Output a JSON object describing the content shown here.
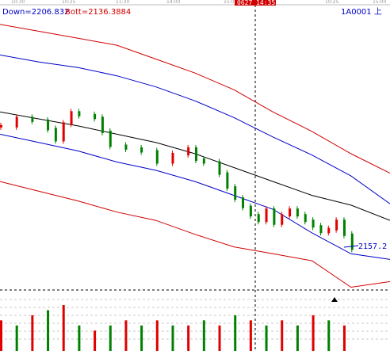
{
  "header": {
    "down_label": "Down=2206.832",
    "bott_label": "Bott=2136.3884",
    "symbol": "1A0001 上",
    "cursor_time": "0627 14:35"
  },
  "time_axis": {
    "top_ticks": [
      "10:30",
      "10:25",
      "11:30",
      "14:00",
      "15:00",
      "10:25",
      "15:00"
    ]
  },
  "price_label": "2157.2",
  "colors": {
    "up": "#e00000",
    "down": "#008000",
    "outer_band": "#d00000",
    "inner_band": "#0000c8",
    "mid_line": "#000000",
    "crosshair": "#000000",
    "cursor_box": "#d00000"
  },
  "chart_data": {
    "type": "line",
    "title": "",
    "xlabel": "",
    "ylabel": "",
    "ylim": [
      2126,
      2330
    ],
    "x": [
      0,
      10,
      20,
      30,
      40,
      50,
      60,
      70,
      80,
      90,
      100
    ],
    "series": [
      {
        "name": "",
        "role": "outer_upper",
        "values": [
          2325,
          2320,
          2315,
          2310,
          2300,
          2290,
          2278,
          2262,
          2248,
          2232,
          2218
        ]
      },
      {
        "name": "",
        "role": "inner_upper",
        "values": [
          2303,
          2298,
          2294,
          2288,
          2280,
          2270,
          2258,
          2244,
          2231,
          2216,
          2196
        ]
      },
      {
        "name": "",
        "role": "middle",
        "values": [
          2262,
          2257,
          2252,
          2246,
          2240,
          2232,
          2222,
          2212,
          2202,
          2195,
          2184
        ]
      },
      {
        "name": "",
        "role": "inner_lower",
        "values": [
          2246,
          2240,
          2234,
          2226,
          2220,
          2212,
          2202,
          2192,
          2175,
          2160,
          2156
        ]
      },
      {
        "name": "",
        "role": "outer_lower",
        "values": [
          2212,
          2205,
          2198,
          2190,
          2184,
          2174,
          2165,
          2160,
          2155,
          2136,
          2140
        ]
      }
    ],
    "price_path": {
      "x": [
        0,
        4,
        8,
        12,
        14,
        16,
        18,
        20,
        24,
        26,
        28,
        32,
        36,
        40,
        44,
        48,
        50,
        52,
        56,
        58,
        60,
        62,
        64,
        66,
        68,
        70,
        72,
        74,
        76,
        78,
        80,
        82,
        84,
        86,
        88,
        90
      ],
      "values": [
        2252,
        2258,
        2256,
        2250,
        2242,
        2254,
        2262,
        2260,
        2258,
        2248,
        2238,
        2236,
        2234,
        2226,
        2232,
        2236,
        2228,
        2226,
        2218,
        2208,
        2200,
        2194,
        2188,
        2184,
        2192,
        2182,
        2188,
        2192,
        2188,
        2184,
        2180,
        2176,
        2178,
        2184,
        2174,
        2164
      ]
    },
    "volume": {
      "x": [
        0,
        4,
        8,
        12,
        16,
        20,
        24,
        28,
        32,
        36,
        40,
        44,
        48,
        52,
        56,
        60,
        64,
        68,
        72,
        76,
        80,
        84,
        88
      ],
      "values": [
        0.6,
        0.5,
        0.7,
        0.8,
        0.9,
        0.5,
        0.4,
        0.5,
        0.6,
        0.5,
        0.6,
        0.5,
        0.5,
        0.6,
        0.5,
        0.7,
        0.6,
        0.5,
        0.6,
        0.5,
        0.7,
        0.6,
        0.5
      ]
    },
    "reference_lines": [
      {
        "value": 2145,
        "style": "dashed"
      }
    ],
    "grid": true,
    "cursor_x": 65
  }
}
